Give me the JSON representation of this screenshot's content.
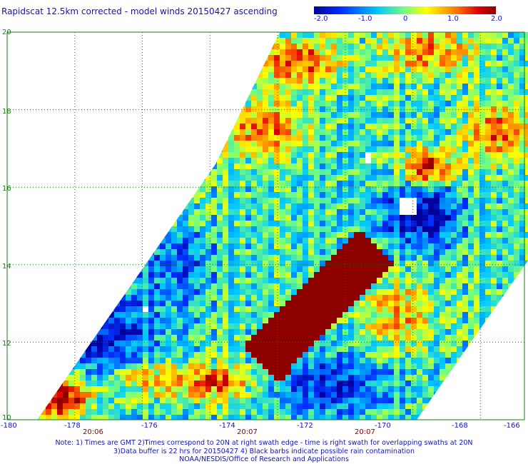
{
  "title": "Rapidscat 12.5km corrected - model winds 20150427 ascending",
  "colorbar": {
    "labels": [
      "-2.0",
      "-1.0",
      "0",
      "1.0",
      "2.0"
    ],
    "min": -2.0,
    "max": 2.0,
    "colors": [
      "#00009a",
      "#0030ff",
      "#00c8ff",
      "#78ff78",
      "#ffff00",
      "#ff7800",
      "#e00000",
      "#8c0000"
    ]
  },
  "map": {
    "lon_range": [
      -180,
      -164.7
    ],
    "lat_range": [
      10,
      20
    ],
    "y_ticks": [
      "20",
      "18",
      "16",
      "14",
      "12",
      "10"
    ],
    "x_ticks": [
      "-180",
      "-178",
      "-176",
      "-174",
      "-172",
      "-170",
      "-168",
      "-166"
    ],
    "time_labels": [
      "20:06",
      "20:07",
      "20:07"
    ],
    "grid_color": "#1a7a1a",
    "no_data_color": "#ffffff"
  },
  "notes": [
    "Note: 1) Times are GMT 2)Times correspond to 20N at right swath edge - time is right swath for overlapping swaths at 20N",
    "3)Data buffer is 22 hrs for 20150427 4) Black barbs indicate possible rain contamination",
    "NOAA/NESDIS/Office of Research and Applications"
  ]
}
